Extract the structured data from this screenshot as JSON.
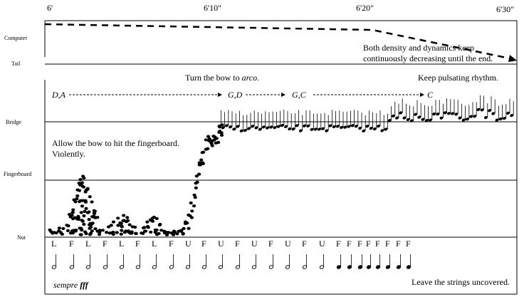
{
  "time_marks": [
    "6'",
    "6'10\"",
    "6'20\"",
    "6'30\""
  ],
  "row_labels": {
    "computer": "Computer",
    "tail": "Tail",
    "bridge": "Bridge",
    "fingerboard": "Fingerboard",
    "nut": "Nut"
  },
  "annotations": {
    "density_1": "Both density and dynamics keep",
    "density_2": "continuously decreasing until the end.",
    "turn_bow": "Turn the bow to ",
    "arco": "arco.",
    "pulsating": "Keep pulsating rhythm.",
    "allow_1": "Allow the bow to hit the fingerboard.",
    "allow_2": "Violently.",
    "sempre": "sempre ",
    "fff": "fff",
    "uncovered": "Leave the strings uncovered."
  },
  "strings": [
    "D,A",
    "G,D",
    "G,C",
    "C"
  ],
  "bow_letters": [
    "L",
    "F",
    "L",
    "F",
    "L",
    "F",
    "L",
    "F",
    "U",
    "F",
    "U",
    "F",
    "U",
    "F",
    "U",
    "F",
    "U",
    "F",
    "F",
    "F",
    "F",
    "F",
    "F",
    "F",
    "F"
  ],
  "note_values": [
    "half",
    "half",
    "half",
    "half",
    "half",
    "half",
    "half",
    "half",
    "half",
    "half",
    "half",
    "half",
    "half",
    "half",
    "half",
    "half",
    "half",
    "quarter",
    "quarter",
    "quarter",
    "quarter",
    "quarter",
    "quarter",
    "quarter",
    "quarter"
  ]
}
